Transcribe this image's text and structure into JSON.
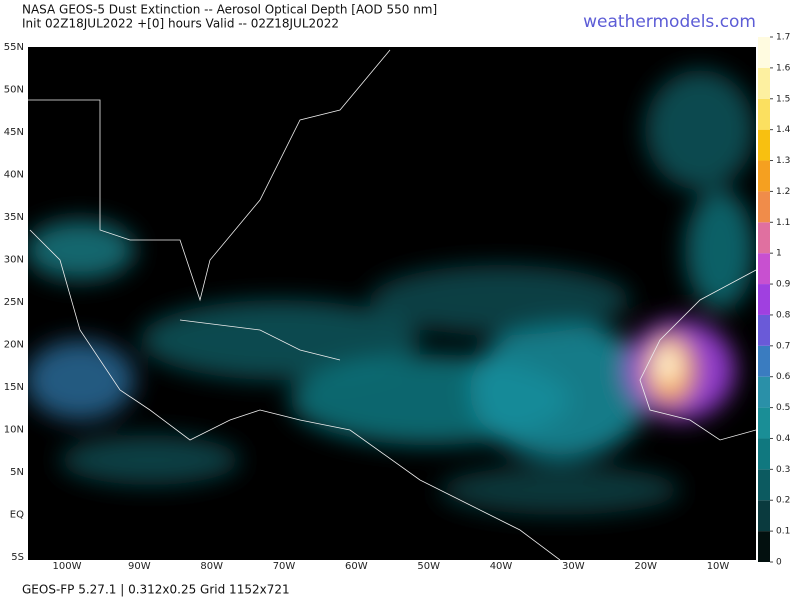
{
  "header": {
    "title": "NASA GEOS-5 Dust Extinction -- Aerosol Optical Depth [AOD 550 nm]",
    "subtitle": "Init 02Z18JUL2022 +[0] hours Valid -- 02Z18JUL2022",
    "site": "weathermodels.com"
  },
  "map": {
    "lat_labels": [
      "55N",
      "50N",
      "45N",
      "40N",
      "35N",
      "30N",
      "25N",
      "20N",
      "15N",
      "10N",
      "5N",
      "EQ",
      "5S"
    ],
    "lon_labels": [
      "100W",
      "90W",
      "80W",
      "70W",
      "60W",
      "50W",
      "40W",
      "30W",
      "20W",
      "10W"
    ]
  },
  "colorbar": {
    "ticks": [
      0,
      0.1,
      0.2,
      0.3,
      0.4,
      0.5,
      0.6,
      0.7,
      0.8,
      0.9,
      1,
      1.1,
      1.2,
      1.3,
      1.4,
      1.5,
      1.6,
      1.7
    ],
    "colors": [
      "#03100f",
      "#0a3a3e",
      "#0c5a60",
      "#10787f",
      "#1a8e96",
      "#2a90a8",
      "#3a7cc0",
      "#6a5ad8",
      "#a040e0",
      "#c850d0",
      "#e070a0",
      "#f08c4a",
      "#f5a020",
      "#f8c010",
      "#fbe060",
      "#fdf0a0",
      "#fffbe0"
    ]
  },
  "footer": "GEOS-FP 5.27.1 | 0.312x0.25 Grid 1152x721"
}
